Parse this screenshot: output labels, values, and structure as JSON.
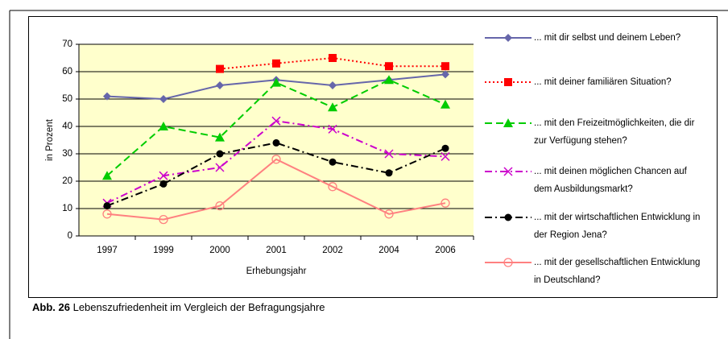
{
  "chart_data": {
    "type": "line",
    "y_label": "in Prozent",
    "x_label": "Erhebungsjahr",
    "categories": [
      "1997",
      "1999",
      "2000",
      "2001",
      "2002",
      "2004",
      "2006"
    ],
    "ylim": [
      0,
      70
    ],
    "yticks": [
      0,
      10,
      20,
      30,
      40,
      50,
      60,
      70
    ],
    "grid": true,
    "plot_background": "#ffffcc",
    "legend": "right",
    "series": [
      {
        "name": "... mit dir selbst und deinem Leben?",
        "color": "#6666aa",
        "line_style": "solid",
        "marker": "diamond",
        "values": [
          51,
          50,
          55,
          57,
          55,
          57,
          59
        ]
      },
      {
        "name": "... mit deiner familiären Situation?",
        "color": "#ff0000",
        "line_style": "dotted",
        "marker": "square",
        "values": [
          null,
          null,
          61,
          63,
          65,
          62,
          62
        ]
      },
      {
        "name": "... mit den Freizeitmöglichkeiten, die dir zur Verfügung stehen?",
        "color": "#00cc00",
        "line_style": "dashed",
        "marker": "triangle",
        "values": [
          22,
          40,
          36,
          56,
          47,
          57,
          48
        ]
      },
      {
        "name": "... mit deinen möglichen Chancen auf dem Ausbildungsmarkt?",
        "color": "#cc00cc",
        "line_style": "dashdot",
        "marker": "x",
        "values": [
          12,
          22,
          25,
          42,
          39,
          30,
          29
        ]
      },
      {
        "name": "... mit der wirtschaftlichen Entwicklung in der Region Jena?",
        "color": "#000000",
        "line_style": "dashdot",
        "marker": "circle",
        "values": [
          11,
          19,
          30,
          34,
          27,
          23,
          32
        ]
      },
      {
        "name": "... mit der gesellschaftlichen Entwicklung in Deutschland?",
        "color": "#ff8080",
        "line_style": "solid",
        "marker": "open-circle",
        "values": [
          8,
          6,
          11,
          28,
          18,
          8,
          12
        ]
      }
    ]
  },
  "caption": {
    "label": "Abb. 26",
    "text": "Lebenszufriedenheit im Vergleich der Befragungsjahre"
  }
}
